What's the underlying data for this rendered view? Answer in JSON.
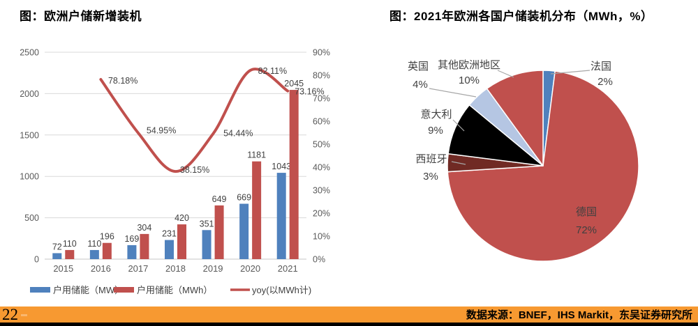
{
  "titles": {
    "left": "图：欧洲户储新增装机",
    "right": "图：2021年欧洲各国户储装机分布（MWh，%）"
  },
  "footer": {
    "page_number": "22",
    "source": "数据来源：BNEF，IHS Markit，东吴证券研究所",
    "bar_color": "#F79931"
  },
  "chart_data": [
    {
      "type": "bar",
      "subtype": "bar-line-combo",
      "title": "图：欧洲户储新增装机",
      "categories": [
        "2015",
        "2016",
        "2017",
        "2018",
        "2019",
        "2020",
        "2021"
      ],
      "series": [
        {
          "name": "户用储能（MW）",
          "type": "bar",
          "axis": "left",
          "color": "#4F81BD",
          "values": [
            72,
            110,
            169,
            231,
            351,
            669,
            1043
          ]
        },
        {
          "name": "户用储能（MWh）",
          "type": "bar",
          "axis": "left",
          "color": "#C0504D",
          "values": [
            110,
            196,
            304,
            420,
            649,
            1181,
            2045
          ]
        },
        {
          "name": "yoy(以MWh计)",
          "type": "line",
          "axis": "right",
          "color": "#C0504D",
          "values": [
            null,
            78.18,
            54.95,
            38.15,
            54.44,
            82.11,
            73.16
          ],
          "point_labels": [
            "",
            "78.18%",
            "54.95%",
            "38.15%",
            "54.44%",
            "82.11%",
            "73.16%"
          ]
        }
      ],
      "left_axis": {
        "min": 0,
        "max": 2500,
        "ticks": [
          "0",
          "500",
          "1000",
          "1500",
          "2000",
          "2500"
        ]
      },
      "right_axis": {
        "min": 0,
        "max": 90,
        "ticks": [
          "0%",
          "10%",
          "20%",
          "30%",
          "40%",
          "50%",
          "60%",
          "70%",
          "80%",
          "90%"
        ]
      },
      "grid": true,
      "legend_position": "bottom"
    },
    {
      "type": "pie",
      "title": "图：2021年欧洲各国户储装机分布（MWh，%）",
      "start_angle_deg": 0,
      "direction": "clockwise",
      "slices": [
        {
          "label": "法国",
          "value": 2,
          "pct_label": "2%",
          "color": "#4F81BD"
        },
        {
          "label": "德国",
          "value": 72,
          "pct_label": "72%",
          "color": "#C0504D"
        },
        {
          "label": "西班牙",
          "value": 3,
          "pct_label": "3%",
          "color": "#702A24"
        },
        {
          "label": "意大利",
          "value": 9,
          "pct_label": "9%",
          "color": "#000000"
        },
        {
          "label": "英国",
          "value": 4,
          "pct_label": "4%",
          "color": "#B5C6E3"
        },
        {
          "label": "其他欧洲地区",
          "value": 10,
          "pct_label": "10%",
          "color": "#C0504D"
        }
      ]
    }
  ]
}
